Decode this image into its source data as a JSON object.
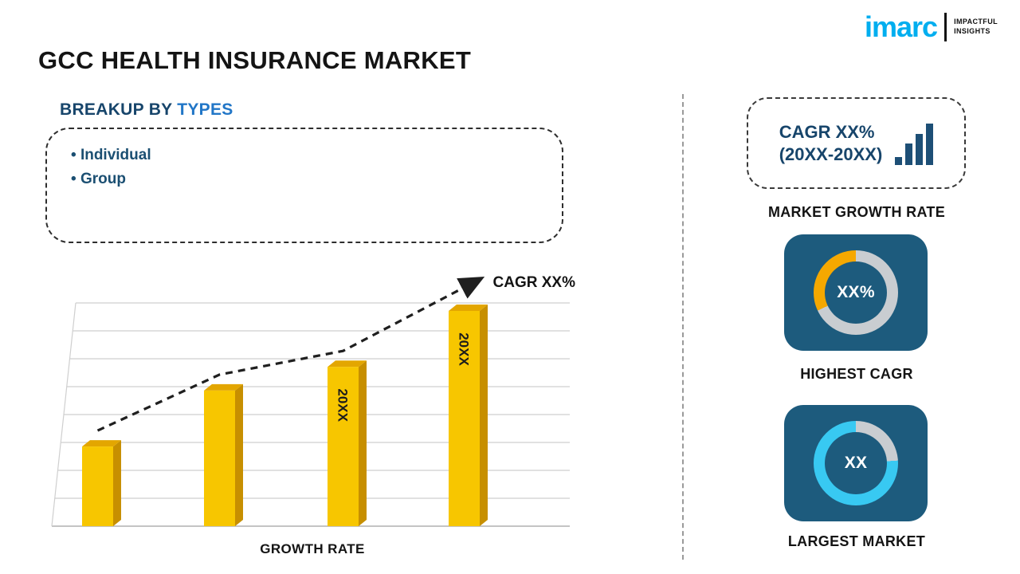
{
  "brand": {
    "logo_text": "imarc",
    "tagline_line1": "IMPACTFUL",
    "tagline_line2": "INSIGHTS"
  },
  "page_title": "GCC HEALTH INSURANCE MARKET",
  "breakup": {
    "heading_prefix": "BREAKUP BY ",
    "heading_highlight": "TYPES",
    "items": [
      "Individual",
      "Group"
    ]
  },
  "chart_data": {
    "type": "bar",
    "title": "",
    "categories": [
      "",
      "",
      "20XX",
      "20XX"
    ],
    "values": [
      37,
      63,
      74,
      100
    ],
    "ylim": [
      0,
      100
    ],
    "grid": true,
    "legend": false,
    "trend_label": "CAGR XX%",
    "xlabel": "GROWTH RATE"
  },
  "right_panel": {
    "cagr_box": {
      "line1": "CAGR XX%",
      "line2": "(20XX-20XX)"
    },
    "market_growth_label": "MARKET GROWTH RATE",
    "highest_cagr": {
      "value": "XX%",
      "label": "HIGHEST CAGR"
    },
    "largest_market": {
      "value": "XX",
      "label": "LARGEST MARKET"
    }
  },
  "colors": {
    "brand_cyan": "#00AEEF",
    "navy": "#17456B",
    "blue": "#2176C7",
    "bullet": "#1B4F72",
    "tile_bg": "#1D5B7D",
    "bar_front": "#F7C600",
    "bar_side": "#C78F00",
    "bar_top": "#E3A600",
    "donut_gray": "#C9CDD1",
    "donut_yellow": "#F5A800",
    "donut_cyan": "#38C9F2",
    "text_dark": "#161616",
    "icon_navy": "#1D4F76"
  }
}
